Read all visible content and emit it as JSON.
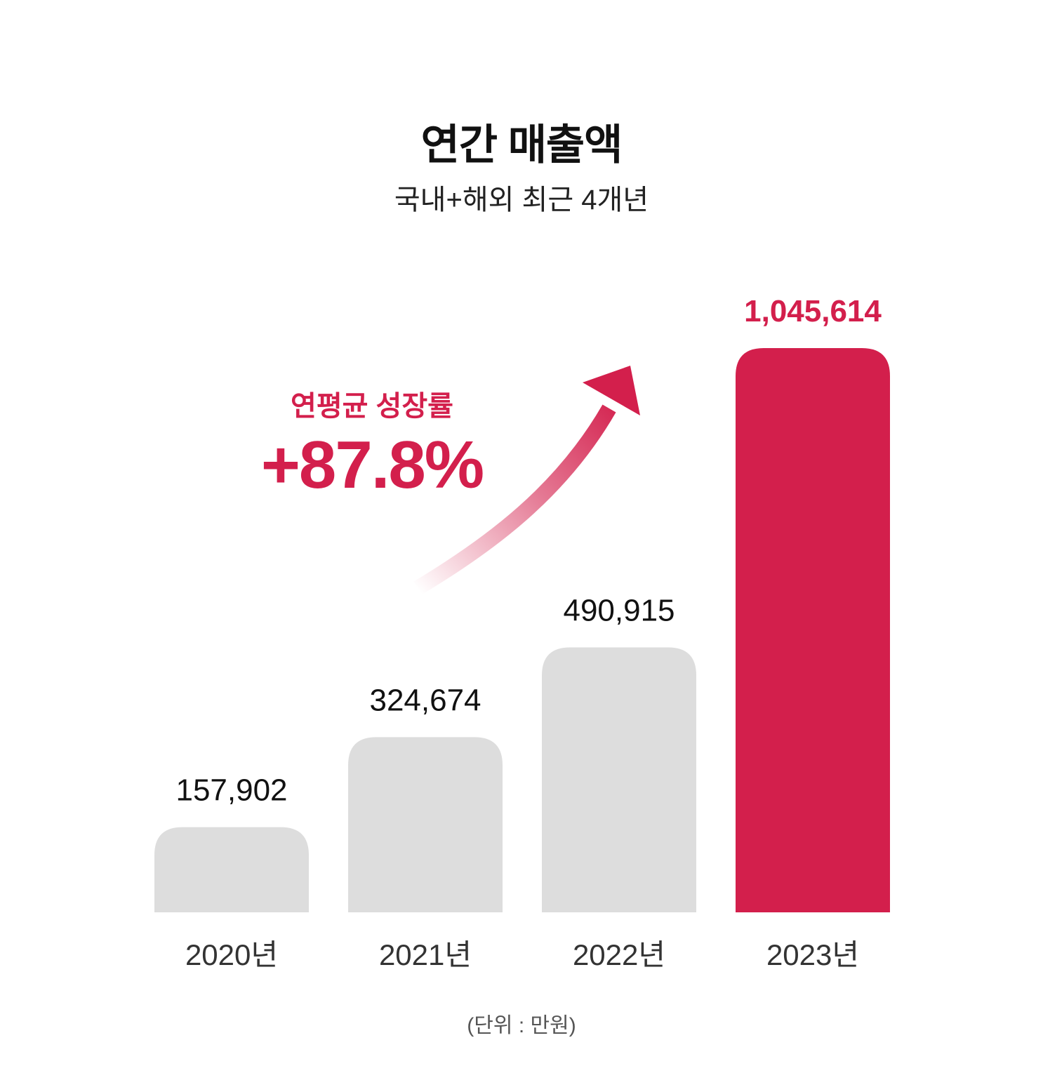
{
  "header": {
    "title": "연간 매출액",
    "subtitle": "국내+해외 최근 4개년"
  },
  "growth": {
    "label": "연평균 성장률",
    "value": "+87.8%",
    "arrow_icon": "arrow-up-right-icon"
  },
  "footer": {
    "unit_note": "(단위 : 만원)"
  },
  "colors": {
    "accent": "#d31f4c",
    "bar_default": "#dddddd",
    "text_dark": "#111111",
    "category_text": "#333333"
  },
  "chart_data": {
    "type": "bar",
    "title": "연간 매출액",
    "subtitle": "국내+해외 최근 4개년",
    "categories": [
      "2020년",
      "2021년",
      "2022년",
      "2023년"
    ],
    "values": [
      157902,
      324674,
      490915,
      1045614
    ],
    "value_labels": [
      "157,902",
      "324,674",
      "490,915",
      "1,045,614"
    ],
    "highlight_index": 3,
    "unit": "만원",
    "ylim": [
      0,
      1045614
    ],
    "grid": false,
    "legend": "none"
  }
}
